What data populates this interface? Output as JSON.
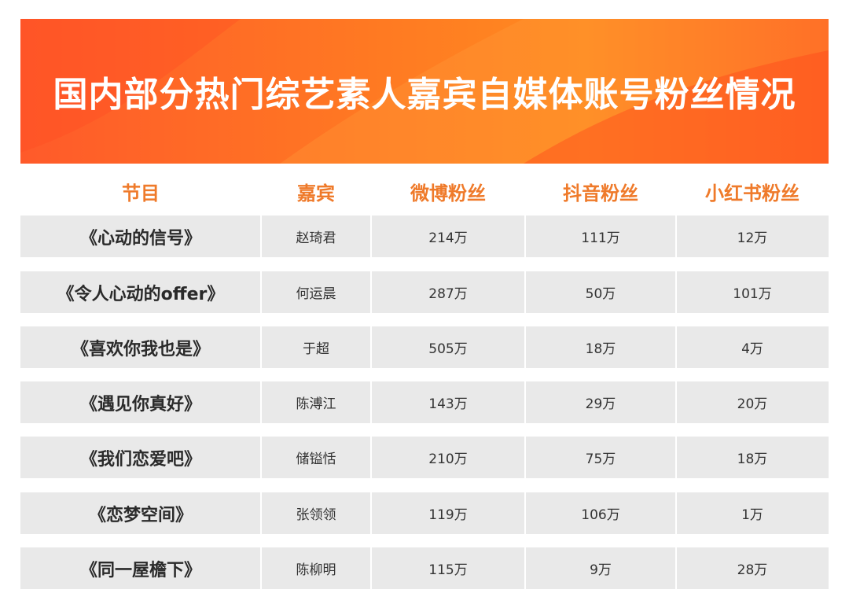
{
  "title": "国内部分热门综艺素人嘉宾自媒体账号粉丝情况",
  "colors": {
    "banner": "#ff7a22",
    "header_text": "#ef7a2a",
    "row_bg": "#e9e9e9"
  },
  "chart_data": {
    "type": "table",
    "columns": [
      "节目",
      "嘉宾",
      "微博粉丝",
      "抖音粉丝",
      "小红书粉丝"
    ],
    "rows": [
      [
        "《心动的信号》",
        "赵琦君",
        "214万",
        "111万",
        "12万"
      ],
      [
        "《令人心动的offer》",
        "何运晨",
        "287万",
        "50万",
        "101万"
      ],
      [
        "《喜欢你我也是》",
        "于超",
        "505万",
        "18万",
        "4万"
      ],
      [
        "《遇见你真好》",
        "陈溥江",
        "143万",
        "29万",
        "20万"
      ],
      [
        "《我们恋爱吧》",
        "储镒恬",
        "210万",
        "75万",
        "18万"
      ],
      [
        "《恋梦空间》",
        "张领领",
        "119万",
        "106万",
        "1万"
      ],
      [
        "《同一屋檐下》",
        "陈柳明",
        "115万",
        "9万",
        "28万"
      ]
    ]
  }
}
